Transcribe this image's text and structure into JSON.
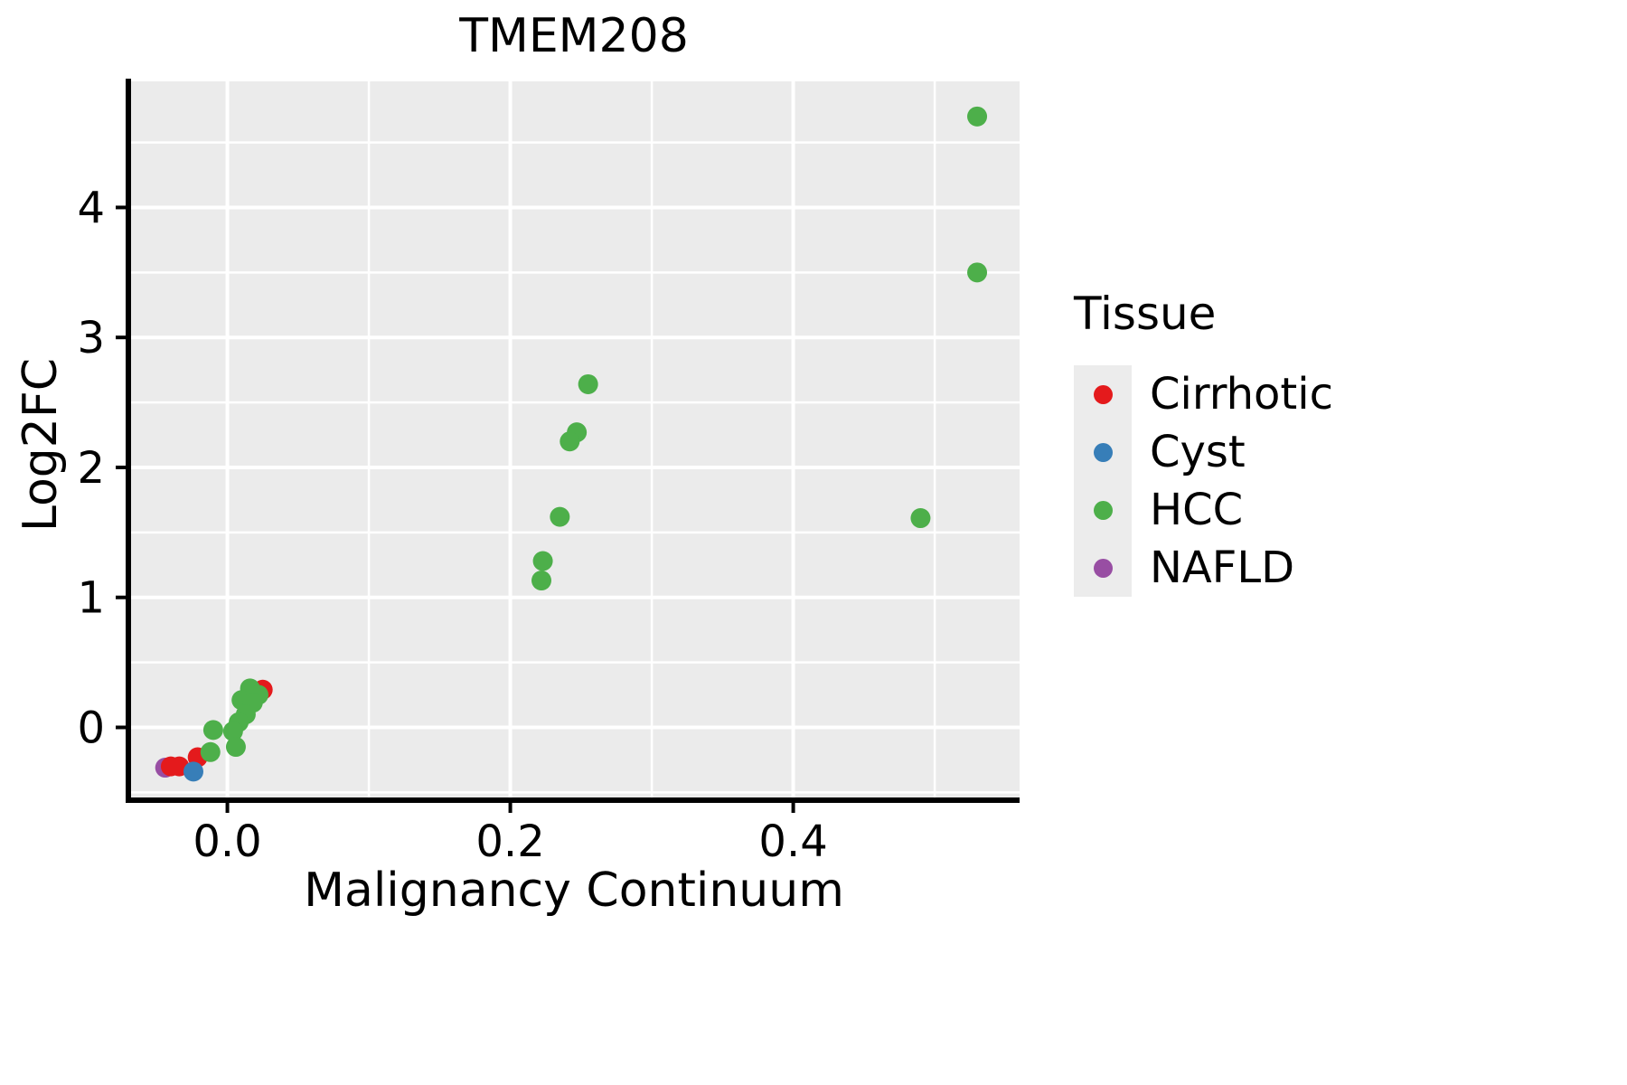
{
  "title": "TMEM208",
  "axes": {
    "x": {
      "label": "Malignancy Continuum",
      "domain": [
        -0.07,
        0.56
      ],
      "major_ticks": [
        {
          "value": 0.0,
          "label": "0.0"
        },
        {
          "value": 0.2,
          "label": "0.2"
        },
        {
          "value": 0.4,
          "label": "0.4"
        }
      ],
      "minor_ticks": [
        0.1,
        0.3,
        0.5
      ]
    },
    "y": {
      "label": "Log2FC",
      "domain": [
        -0.56,
        4.97
      ],
      "major_ticks": [
        {
          "value": 0,
          "label": "0"
        },
        {
          "value": 1,
          "label": "1"
        },
        {
          "value": 2,
          "label": "2"
        },
        {
          "value": 3,
          "label": "3"
        },
        {
          "value": 4,
          "label": "4"
        }
      ],
      "minor_ticks": [
        -0.5,
        0.5,
        1.5,
        2.5,
        3.5,
        4.5
      ]
    }
  },
  "legend": {
    "title": "Tissue",
    "items": [
      {
        "label": "Cirrhotic",
        "color": "#E41A1C"
      },
      {
        "label": "Cyst",
        "color": "#377EB8"
      },
      {
        "label": "HCC",
        "color": "#4DAF4A"
      },
      {
        "label": "NAFLD",
        "color": "#984EA3"
      }
    ]
  },
  "style": {
    "panel_background": "#EBEBEB",
    "grid_color": "#FFFFFF",
    "axis_color": "#000000",
    "point_radius": 11
  },
  "chart_data": {
    "type": "scatter",
    "title": "TMEM208",
    "xlabel": "Malignancy Continuum",
    "ylabel": "Log2FC",
    "xlim": [
      -0.07,
      0.56
    ],
    "ylim": [
      -0.56,
      4.97
    ],
    "legend_position": "right",
    "grid": true,
    "draw_order": [
      "NAFLD",
      "Cirrhotic",
      "Cyst",
      "HCC"
    ],
    "series": [
      {
        "name": "Cirrhotic",
        "color": "#E41A1C",
        "points": [
          [
            -0.04,
            -0.3
          ],
          [
            -0.034,
            -0.3
          ],
          [
            -0.021,
            -0.23
          ],
          [
            0.025,
            0.29
          ]
        ]
      },
      {
        "name": "Cyst",
        "color": "#377EB8",
        "points": [
          [
            -0.024,
            -0.34
          ]
        ]
      },
      {
        "name": "HCC",
        "color": "#4DAF4A",
        "points": [
          [
            0.53,
            4.7
          ],
          [
            0.53,
            3.5
          ],
          [
            0.49,
            1.61
          ],
          [
            0.255,
            2.64
          ],
          [
            0.247,
            2.27
          ],
          [
            0.242,
            2.2
          ],
          [
            0.235,
            1.62
          ],
          [
            0.223,
            1.28
          ],
          [
            0.222,
            1.13
          ],
          [
            0.016,
            0.3
          ],
          [
            0.022,
            0.25
          ],
          [
            0.01,
            0.21
          ],
          [
            0.018,
            0.19
          ],
          [
            0.013,
            0.1
          ],
          [
            0.008,
            0.04
          ],
          [
            0.004,
            -0.03
          ],
          [
            -0.01,
            -0.02
          ],
          [
            0.006,
            -0.15
          ],
          [
            -0.012,
            -0.19
          ]
        ]
      },
      {
        "name": "NAFLD",
        "color": "#984EA3",
        "points": [
          [
            -0.044,
            -0.31
          ]
        ]
      }
    ]
  }
}
